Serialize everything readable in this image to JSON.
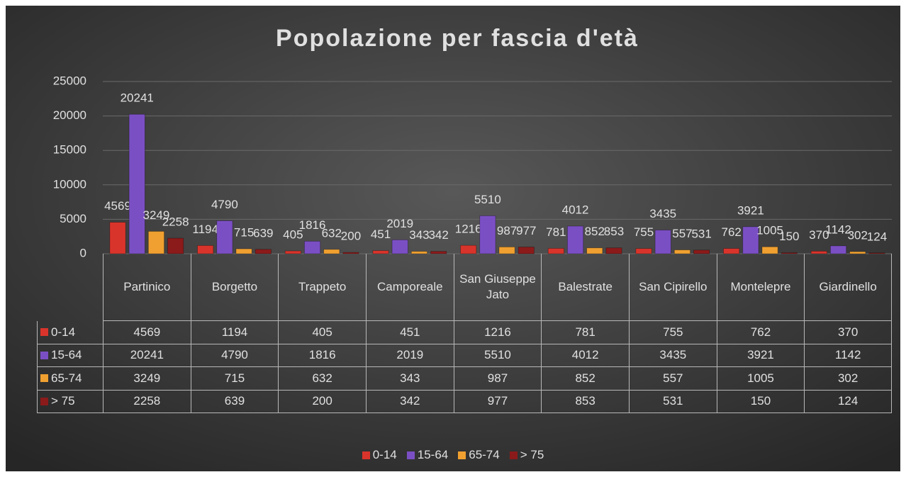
{
  "chart_data": {
    "type": "bar",
    "title": "Popolazione per fascia d'età",
    "categories": [
      "Partinico",
      "Borgetto",
      "Trappeto",
      "Camporeale",
      "San Giuseppe Jato",
      "Balestrate",
      "San Cipirello",
      "Montelepre",
      "Giardinello"
    ],
    "series": [
      {
        "name": "0-14",
        "color": "#d9342b",
        "values": [
          4569,
          1194,
          405,
          451,
          1216,
          781,
          755,
          762,
          370
        ]
      },
      {
        "name": "15-64",
        "color": "#7b4fc4",
        "values": [
          20241,
          4790,
          1816,
          2019,
          5510,
          4012,
          3435,
          3921,
          1142
        ]
      },
      {
        "name": "65-74",
        "color": "#f0a030",
        "values": [
          3249,
          715,
          632,
          343,
          987,
          852,
          557,
          1005,
          302
        ]
      },
      {
        "name": "> 75",
        "color": "#8b1a1a",
        "values": [
          2258,
          639,
          200,
          342,
          977,
          853,
          531,
          150,
          124
        ]
      }
    ],
    "ylim": [
      0,
      25000
    ],
    "yticks": [
      0,
      5000,
      10000,
      15000,
      20000,
      25000
    ],
    "grid": true
  }
}
